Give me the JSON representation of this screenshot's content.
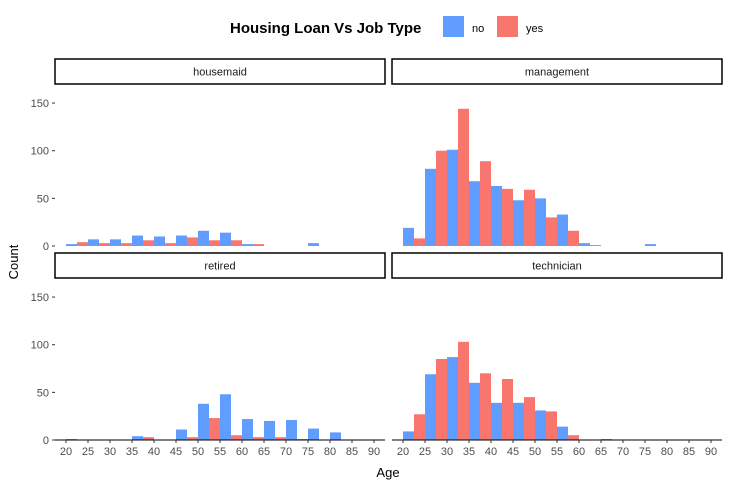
{
  "chart_data": {
    "type": "bar",
    "legend_title": "Housing Loan Vs Job Type",
    "legend_position": "top",
    "xlabel": "Age",
    "ylabel": "Count",
    "ylim": [
      0,
      170
    ],
    "y_ticks": [
      0,
      50,
      100,
      150
    ],
    "x_ticks": [
      20,
      25,
      30,
      35,
      40,
      45,
      50,
      55,
      60,
      65,
      70,
      75,
      80,
      85,
      90
    ],
    "xlim": [
      17.5,
      92.5
    ],
    "bin_width": 5,
    "bin_centers": [
      22.5,
      27.5,
      32.5,
      37.5,
      42.5,
      47.5,
      52.5,
      57.5,
      62.5,
      67.5,
      72.5,
      77.5,
      82.5,
      87.5
    ],
    "grid": false,
    "colors": {
      "no": "#619CFF",
      "yes": "#F8766D"
    },
    "series_names": [
      "no",
      "yes"
    ],
    "panels": [
      {
        "label": "housemaid",
        "series": [
          {
            "name": "no",
            "values": [
              2,
              7,
              7,
              11,
              10,
              11,
              16,
              14,
              2,
              0,
              0,
              3,
              0,
              0
            ]
          },
          {
            "name": "yes",
            "values": [
              4,
              3,
              3,
              6,
              3,
              9,
              6,
              6,
              2,
              0,
              0,
              0,
              0,
              0
            ]
          }
        ]
      },
      {
        "label": "management",
        "series": [
          {
            "name": "no",
            "values": [
              19,
              81,
              101,
              68,
              63,
              48,
              50,
              33,
              3,
              0,
              0,
              2,
              0,
              0
            ]
          },
          {
            "name": "yes",
            "values": [
              8,
              100,
              144,
              89,
              60,
              59,
              30,
              16,
              1,
              0,
              0,
              0,
              0,
              0
            ]
          }
        ]
      },
      {
        "label": "retired",
        "series": [
          {
            "name": "no",
            "values": [
              1,
              0,
              0,
              4,
              0,
              11,
              38,
              48,
              22,
              20,
              21,
              12,
              8,
              0
            ]
          },
          {
            "name": "yes",
            "values": [
              0,
              0,
              0,
              3,
              0,
              3,
              23,
              5,
              3,
              3,
              1,
              0,
              0,
              0
            ]
          }
        ]
      },
      {
        "label": "technician",
        "series": [
          {
            "name": "no",
            "values": [
              9,
              69,
              87,
              60,
              39,
              39,
              31,
              14,
              0,
              1,
              0,
              0,
              0,
              0
            ]
          },
          {
            "name": "yes",
            "values": [
              27,
              85,
              103,
              70,
              64,
              45,
              30,
              5,
              0,
              0,
              0,
              0,
              0,
              0
            ]
          }
        ]
      }
    ]
  }
}
